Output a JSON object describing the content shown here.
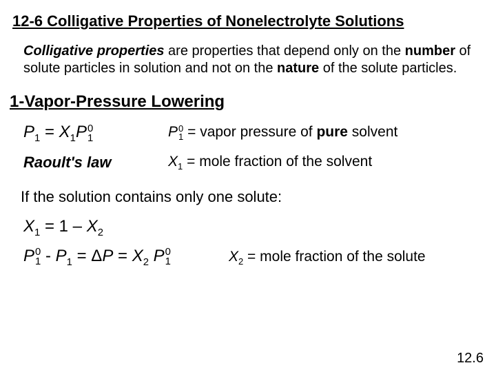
{
  "title": "12-6 Colligative Properties of Nonelectrolyte Solutions",
  "definition": {
    "term": "Colligative properties",
    "mid1": " are properties that depend only on the ",
    "kw1": "number",
    "mid2": " of solute particles in solution and not on the ",
    "kw2": "nature",
    "mid3": " of the solute particles."
  },
  "section_heading": "1-Vapor-Pressure Lowering",
  "raoult": {
    "P": "P",
    "X": "X",
    "eq": " = ",
    "sub1": "1",
    "sup0": "0",
    "vp_text": " = vapor pressure of ",
    "pure_solvent": "pure",
    "solvent_word": " solvent",
    "law_label": "Raoult's law",
    "x1_text": " = mole fraction of the solvent"
  },
  "one_solute_text": "If the solution contains only one solute:",
  "x1_eq": {
    "X": "X",
    "sub1": "1",
    "mid": " = 1 – ",
    "sub2": "2"
  },
  "dp_eq": {
    "P": "P",
    "X": "X",
    "sub1": "1",
    "sub2": "2",
    "sup0": "0",
    "minus": " - ",
    "eq": " = ",
    "delta": "Δ",
    "x2_text": " = mole fraction of the solute"
  },
  "page_number": "12.6"
}
